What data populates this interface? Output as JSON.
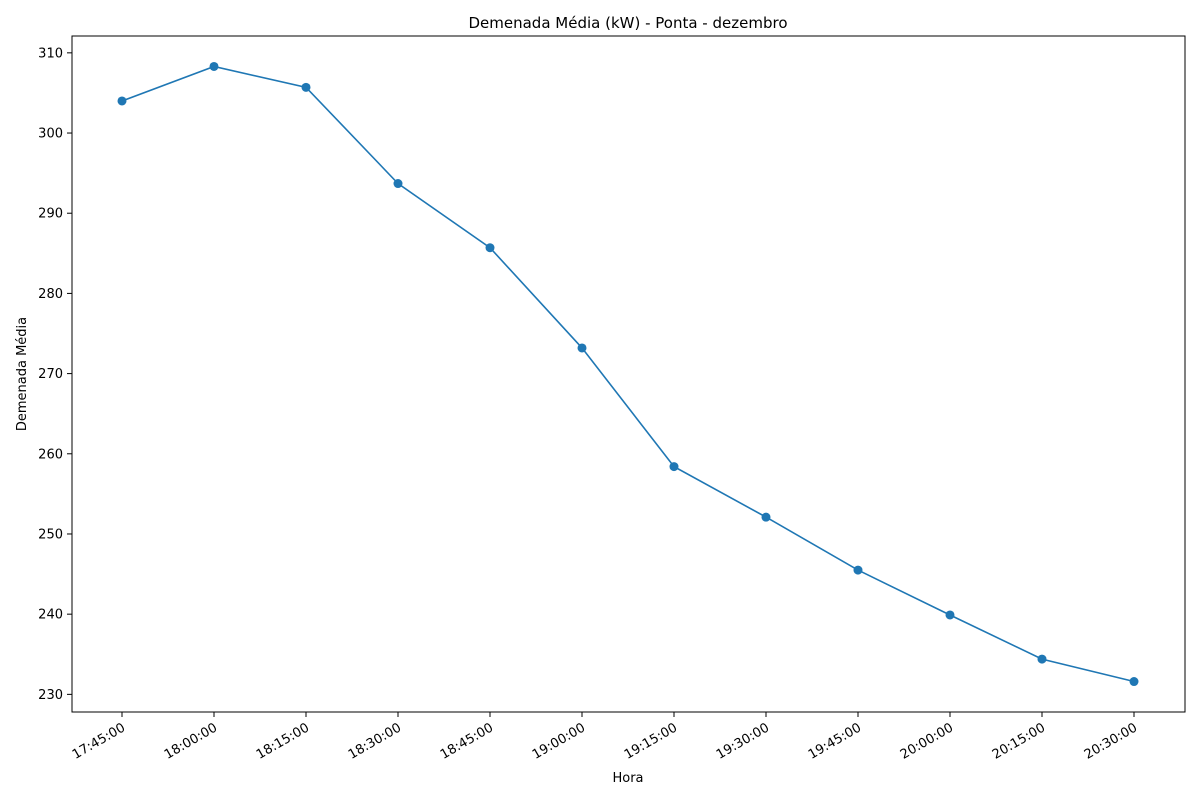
{
  "chart_data": {
    "type": "line",
    "title": "Demenada Média (kW) - Ponta - dezembro",
    "xlabel": "Hora",
    "ylabel": "Demenada Média",
    "categories": [
      "17:45:00",
      "18:00:00",
      "18:15:00",
      "18:30:00",
      "18:45:00",
      "19:00:00",
      "19:15:00",
      "19:30:00",
      "19:45:00",
      "20:00:00",
      "20:15:00",
      "20:30:00"
    ],
    "series": [
      {
        "name": "Demenada Média",
        "color": "#1f77b4",
        "values": [
          304.0,
          308.3,
          305.7,
          293.7,
          285.7,
          273.2,
          258.4,
          252.1,
          245.5,
          239.9,
          234.4,
          231.6
        ]
      }
    ],
    "ylim": [
      227.8,
      312.1
    ],
    "yticks": [
      230,
      240,
      250,
      260,
      270,
      280,
      290,
      300,
      310
    ],
    "grid": false,
    "legend": "none"
  }
}
